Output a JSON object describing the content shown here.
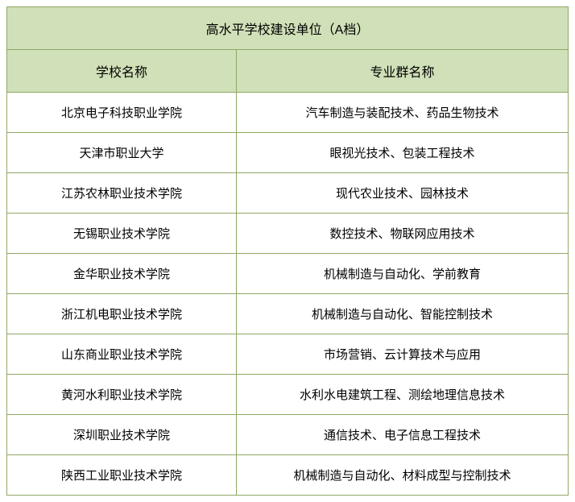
{
  "table": {
    "title": "高水平学校建设单位（A档）",
    "columns": [
      "学校名称",
      "专业群名称"
    ],
    "rows": [
      [
        "北京电子科技职业学院",
        "汽车制造与装配技术、药品生物技术"
      ],
      [
        "天津市职业大学",
        "眼视光技术、包装工程技术"
      ],
      [
        "江苏农林职业技术学院",
        "现代农业技术、园林技术"
      ],
      [
        "无锡职业技术学院",
        "数控技术、物联网应用技术"
      ],
      [
        "金华职业技术学院",
        "机械制造与自动化、学前教育"
      ],
      [
        "浙江机电职业技术学院",
        "机械制造与自动化、智能控制技术"
      ],
      [
        "山东商业职业技术学院",
        "市场营销、云计算技术与应用"
      ],
      [
        "黄河水利职业技术学院",
        "水利水电建筑工程、测绘地理信息技术"
      ],
      [
        "深圳职业技术学院",
        "通信技术、电子信息工程技术"
      ],
      [
        "陕西工业职业技术学院",
        "机械制造与自动化、材料成型与控制技术"
      ]
    ],
    "styling": {
      "header_bg": "#d0e0b8",
      "border_color": "#8fa865",
      "row_bg": "#ffffff",
      "text_color": "#000000",
      "title_fontsize": 16,
      "header_fontsize": 16,
      "cell_fontsize": 15,
      "col1_width": 285,
      "total_width": 698
    }
  }
}
